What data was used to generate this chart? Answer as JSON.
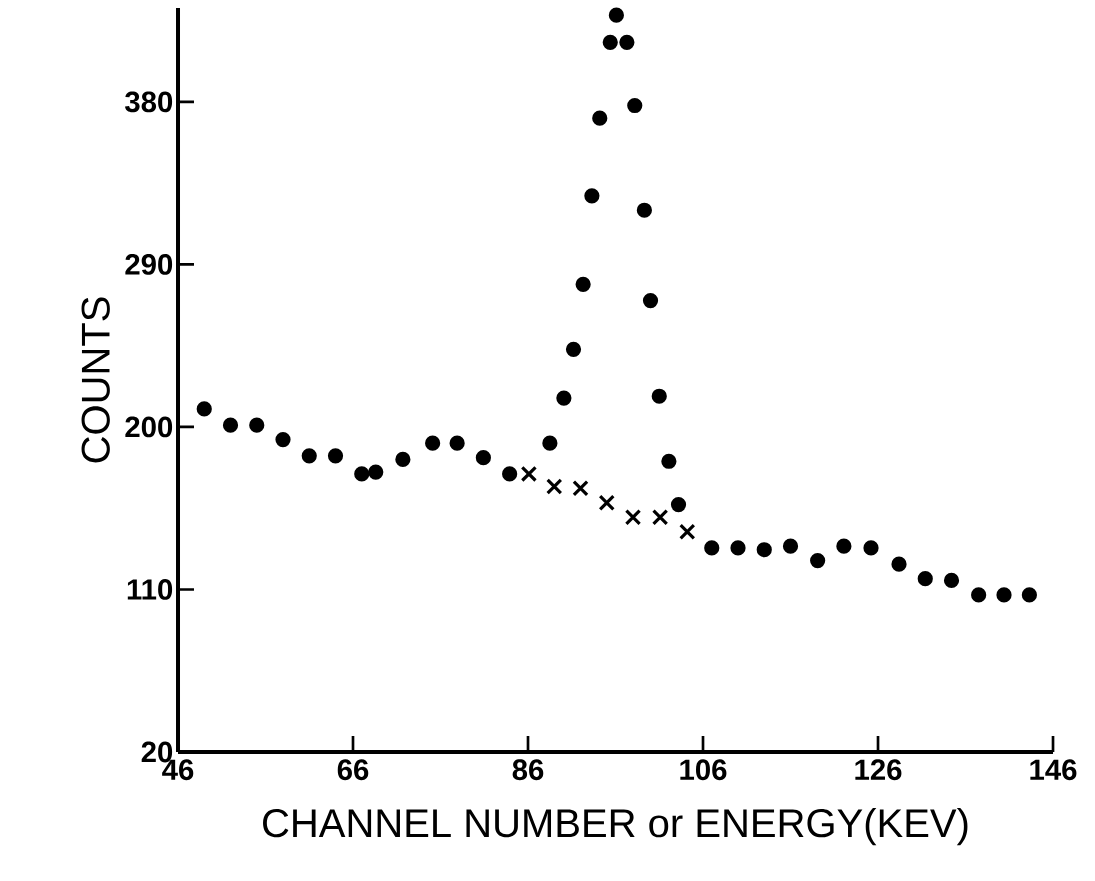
{
  "chart_data": {
    "type": "scatter",
    "xlabel": "CHANNEL NUMBER or ENERGY(KEV)",
    "ylabel": "COUNTS",
    "xlim": [
      46,
      146
    ],
    "ylim": [
      20,
      432
    ],
    "xticks": [
      46,
      66,
      86,
      106,
      126,
      146
    ],
    "yticks": [
      20,
      110,
      200,
      290,
      380
    ],
    "grid": false,
    "series": [
      {
        "color": "#000000",
        "marker": "circle",
        "x": [
          49,
          52,
          55,
          58,
          61,
          64,
          67,
          68.6,
          71.7,
          75.1,
          77.9,
          80.9,
          83.9,
          88.5,
          90.1,
          91.2,
          92.3,
          93.3,
          94.2,
          95.4,
          96.1,
          97.3,
          98.2,
          99.3,
          100,
          101,
          102.1,
          103.2,
          107,
          110,
          113,
          116,
          119.1,
          122.1,
          125.2,
          128.4,
          131.4,
          134.4,
          137.5,
          140.4,
          143.3
        ],
        "values": [
          210,
          201,
          201,
          193,
          184,
          184,
          174,
          175,
          182,
          191,
          191,
          183,
          174,
          191,
          216,
          243,
          279,
          328,
          371,
          413,
          428,
          413,
          378,
          320,
          270,
          217,
          181,
          157,
          133,
          133,
          132,
          134,
          126,
          134,
          133,
          124,
          116,
          115,
          107,
          107,
          107
        ]
      },
      {
        "color": "#000000",
        "marker": "cross",
        "x": [
          86.1,
          89,
          92,
          95,
          98,
          101.1,
          104.2
        ],
        "values": [
          174,
          167,
          166,
          158,
          150,
          150,
          142
        ]
      }
    ]
  }
}
